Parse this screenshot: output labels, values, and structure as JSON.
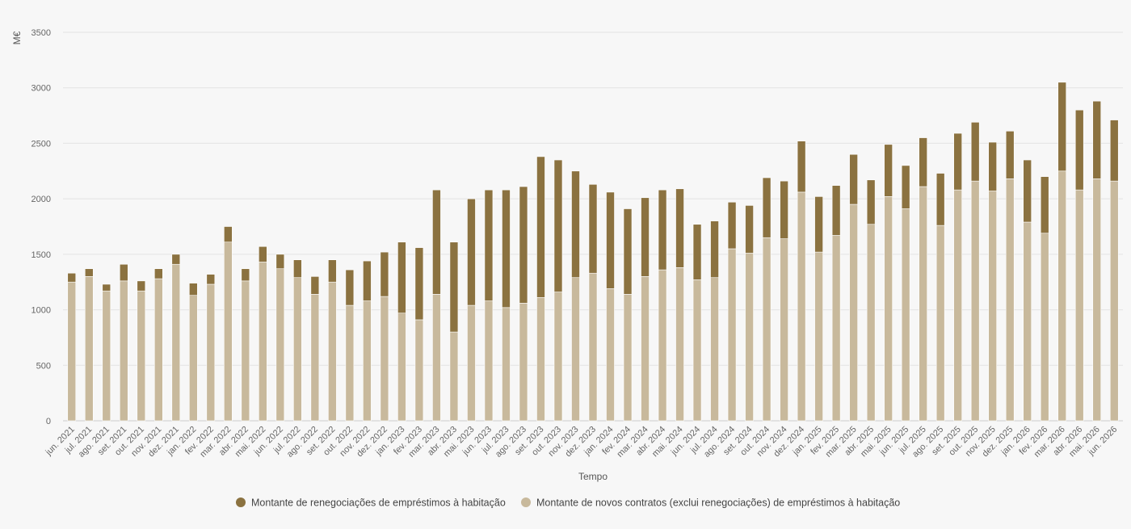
{
  "chart_data": {
    "type": "bar",
    "stacked": true,
    "xlabel": "Tempo",
    "ylabel": "M€",
    "ylim": [
      0,
      3500
    ],
    "yticks": [
      0,
      500,
      1000,
      1500,
      2000,
      2500,
      3000,
      3500
    ],
    "grid": true,
    "legend_position": "bottom",
    "colors": {
      "renegotiations": "#8b7240",
      "new_contracts": "#c8b99c",
      "grid": "#e3e3e3",
      "axis": "#cccccc"
    },
    "categories": [
      "jun. 2021",
      "jul. 2021",
      "ago. 2021",
      "set. 2021",
      "out. 2021",
      "nov. 2021",
      "dez. 2021",
      "jan. 2022",
      "fev. 2022",
      "mar. 2022",
      "abr. 2022",
      "mai. 2022",
      "jun. 2022",
      "jul. 2022",
      "ago. 2022",
      "set. 2022",
      "out. 2022",
      "nov. 2022",
      "dez. 2022",
      "jan. 2023",
      "fev. 2023",
      "mar. 2023",
      "abr. 2023",
      "mai. 2023",
      "jun. 2023",
      "jul. 2023",
      "ago. 2023",
      "set. 2023",
      "out. 2023",
      "nov. 2023",
      "dez. 2023",
      "jan. 2024",
      "fev. 2024",
      "mar. 2024",
      "abr. 2024",
      "mai. 2024",
      "jun. 2024",
      "jul. 2024",
      "ago. 2024",
      "set. 2024",
      "out. 2024",
      "nov. 2024",
      "dez. 2024",
      "jan. 2025",
      "fev. 2025",
      "mar. 2025",
      "abr. 2025",
      "mai. 2025",
      "jun. 2025",
      "jul. 2025",
      "ago. 2025",
      "set. 2025",
      "out. 2025",
      "nov. 2025",
      "dez. 2025",
      "jan. 2026",
      "fev. 2026",
      "mar. 2026",
      "abr. 2026",
      "mai. 2026",
      "jun. 2026"
    ],
    "series": [
      {
        "name": "Montante de novos contratos (exclui renegociações) de empréstimos à habitação",
        "key": "new_contracts",
        "values": [
          1250,
          1300,
          1170,
          1260,
          1170,
          1280,
          1410,
          1130,
          1230,
          1610,
          1260,
          1430,
          1370,
          1290,
          1140,
          1250,
          1040,
          1080,
          1120,
          970,
          910,
          1140,
          800,
          1040,
          1080,
          1020,
          1060,
          1110,
          1160,
          1290,
          1330,
          1190,
          1140,
          1300,
          1360,
          1380,
          1270,
          1290,
          1550,
          1510,
          1650,
          1640,
          2060,
          1520,
          1670,
          1950,
          1770,
          2020,
          1910,
          2110,
          1760,
          2080,
          2160,
          2070,
          2180,
          1790,
          1690,
          2250,
          2080,
          2180,
          2160
        ]
      },
      {
        "name": "Montante de renegociações de empréstimos à habitação",
        "key": "renegotiations",
        "values": [
          80,
          70,
          60,
          150,
          90,
          90,
          90,
          110,
          90,
          140,
          110,
          140,
          130,
          160,
          160,
          200,
          320,
          360,
          400,
          640,
          650,
          940,
          810,
          960,
          1000,
          1060,
          1050,
          1270,
          1190,
          960,
          800,
          870,
          770,
          710,
          720,
          710,
          500,
          510,
          420,
          430,
          540,
          520,
          460,
          500,
          450,
          450,
          400,
          470,
          390,
          440,
          470,
          510,
          530,
          440,
          430,
          560,
          510,
          800,
          720,
          700,
          550
        ]
      }
    ]
  }
}
